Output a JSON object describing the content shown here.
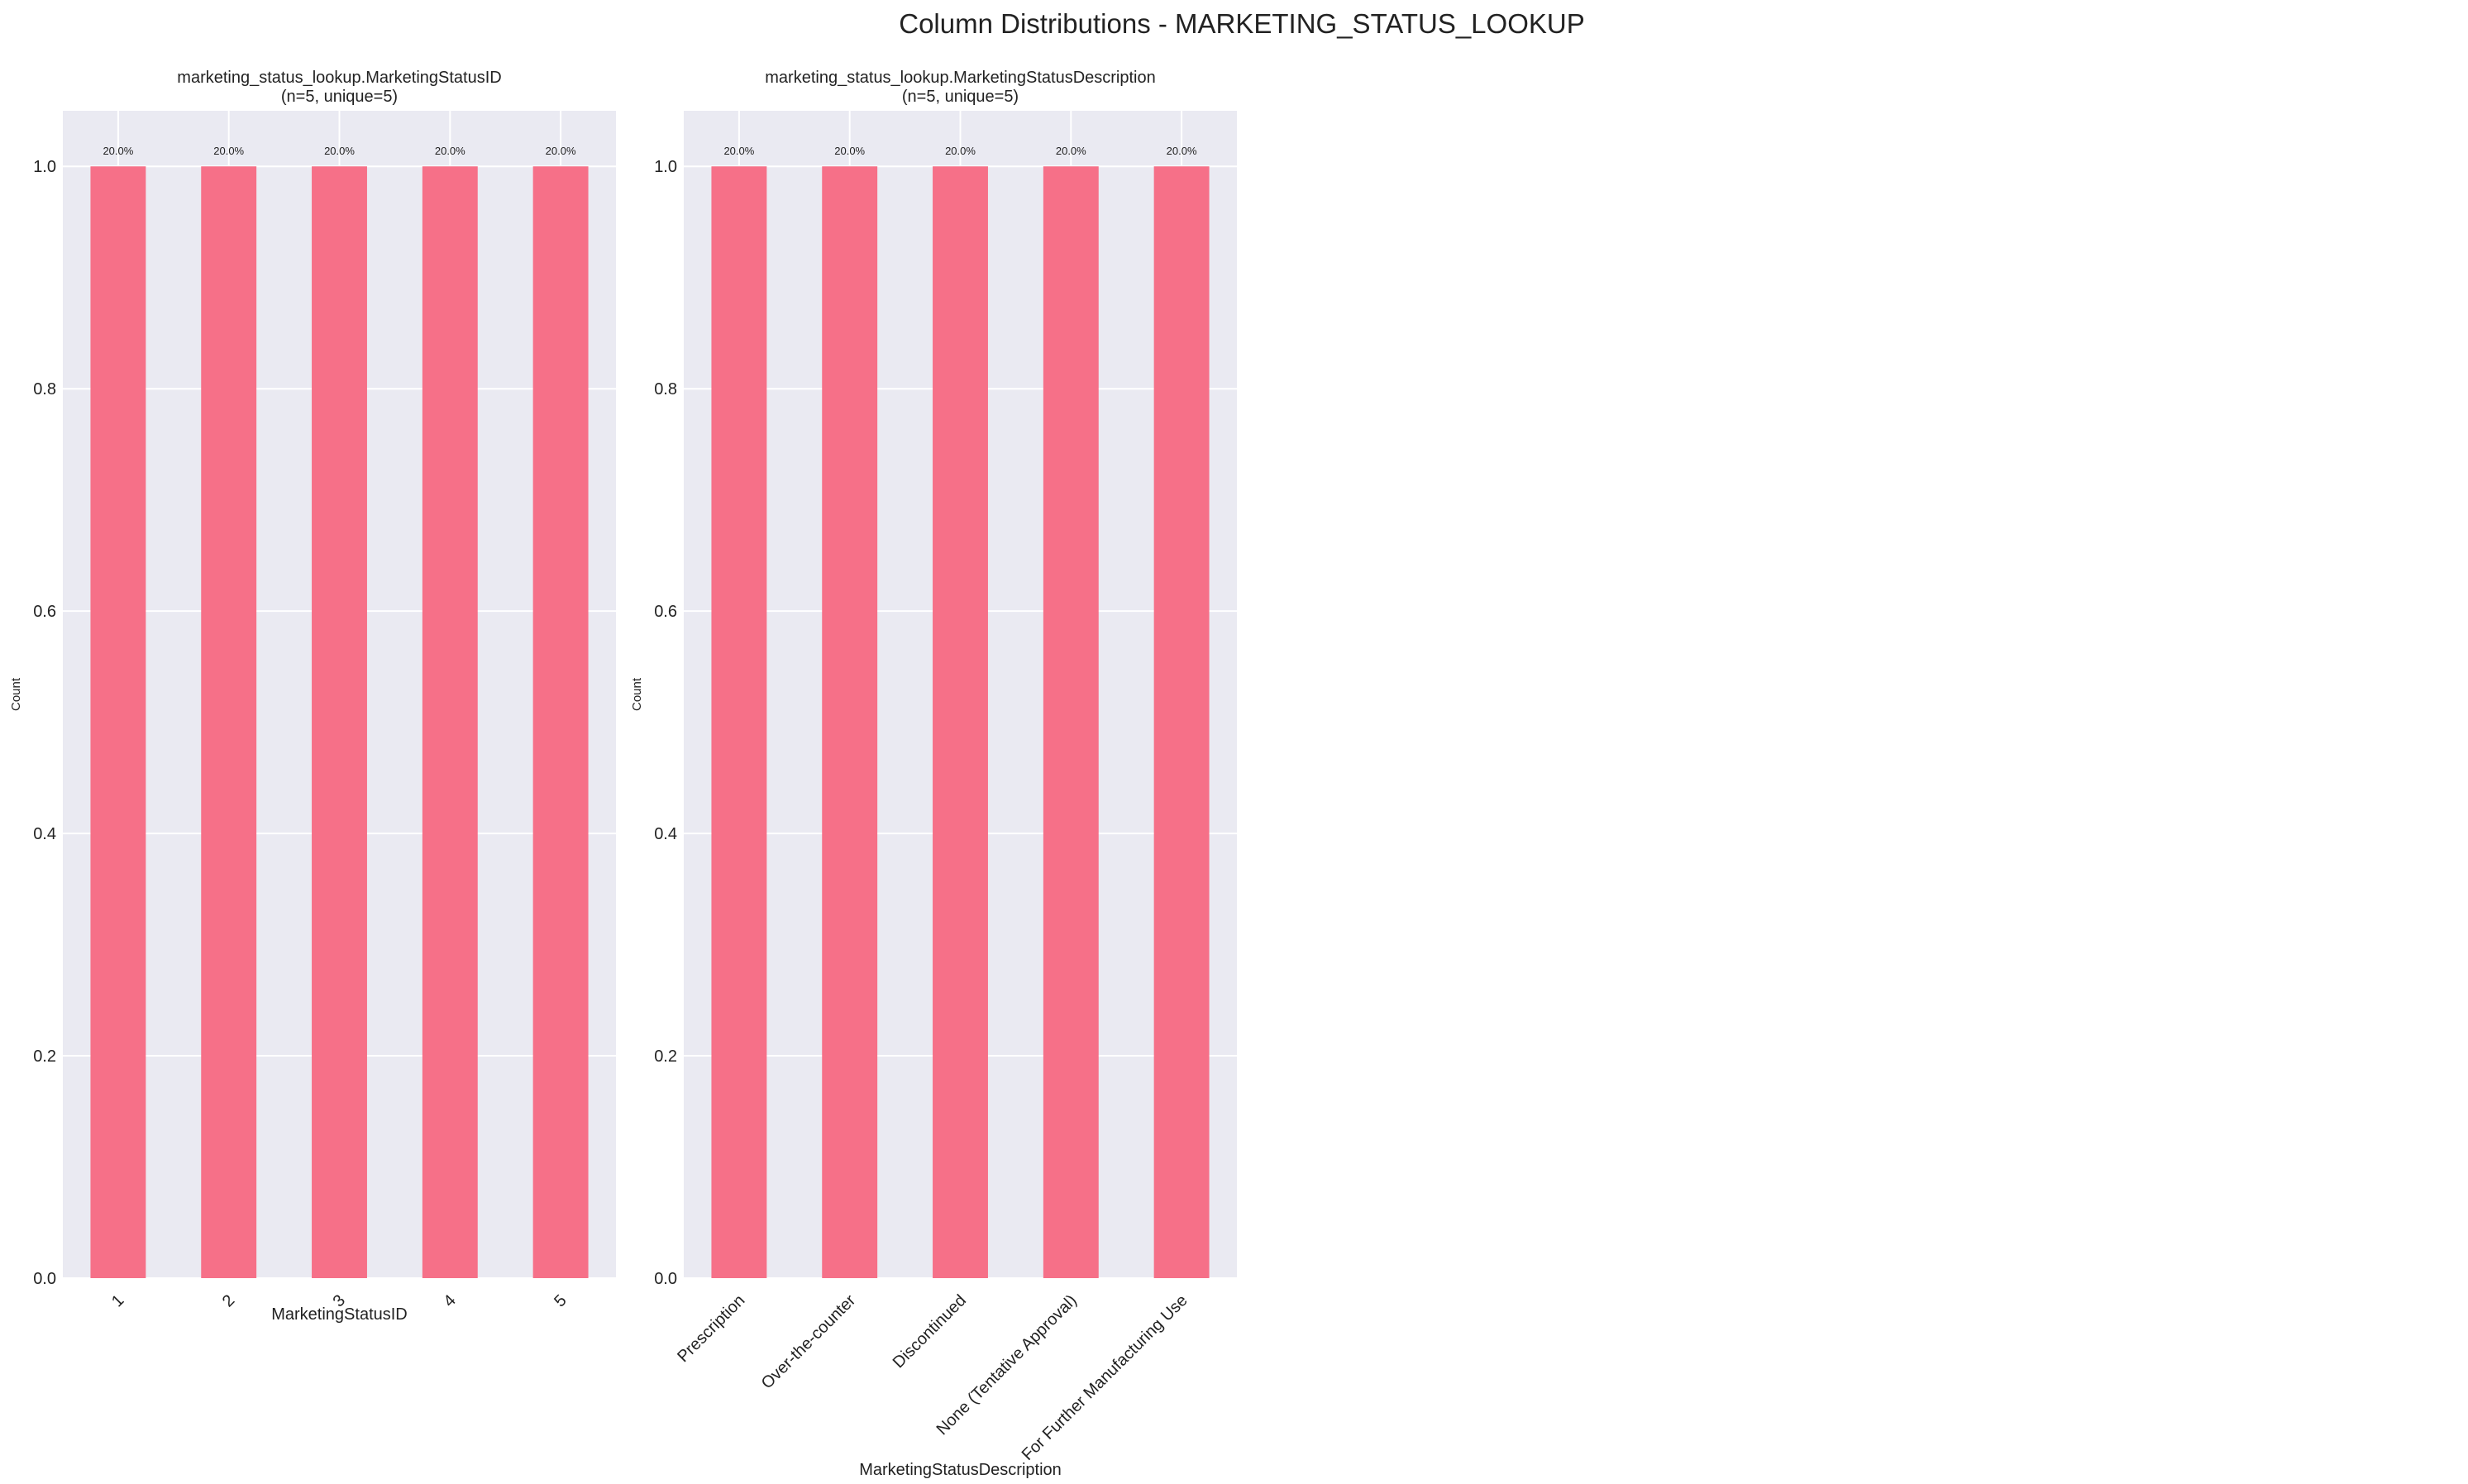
{
  "figure": {
    "title": "Column Distributions - MARKETING_STATUS_LOOKUP"
  },
  "style": {
    "bar_color": "#f67088",
    "plot_background": "#eaeaf2",
    "grid_color": "#ffffff",
    "text_color": "#222222"
  },
  "chart_data": [
    {
      "type": "bar",
      "title_line1": "marketing_status_lookup.MarketingStatusID",
      "title_line2": "(n=5, unique=5)",
      "xlabel": "MarketingStatusID",
      "ylabel": "Count",
      "categories": [
        "1",
        "2",
        "3",
        "4",
        "5"
      ],
      "values": [
        1,
        1,
        1,
        1,
        1
      ],
      "data_labels": [
        "20.0%",
        "20.0%",
        "20.0%",
        "20.0%",
        "20.0%"
      ],
      "ylim": [
        0,
        1.05
      ],
      "yticks": [
        0.0,
        0.2,
        0.4,
        0.6,
        0.8,
        1.0
      ],
      "ytick_labels": [
        "0.0",
        "0.2",
        "0.4",
        "0.6",
        "0.8",
        "1.0"
      ],
      "xtick_rotation": 45,
      "grid": true
    },
    {
      "type": "bar",
      "title_line1": "marketing_status_lookup.MarketingStatusDescription",
      "title_line2": "(n=5, unique=5)",
      "xlabel": "MarketingStatusDescription",
      "ylabel": "Count",
      "categories": [
        "Prescription",
        "Over-the-counter",
        "Discontinued",
        "None (Tentative Approval)",
        "For Further Manufacturing Use"
      ],
      "values": [
        1,
        1,
        1,
        1,
        1
      ],
      "data_labels": [
        "20.0%",
        "20.0%",
        "20.0%",
        "20.0%",
        "20.0%"
      ],
      "ylim": [
        0,
        1.05
      ],
      "yticks": [
        0.0,
        0.2,
        0.4,
        0.6,
        0.8,
        1.0
      ],
      "ytick_labels": [
        "0.0",
        "0.2",
        "0.4",
        "0.6",
        "0.8",
        "1.0"
      ],
      "xtick_rotation": 45,
      "grid": true
    }
  ]
}
